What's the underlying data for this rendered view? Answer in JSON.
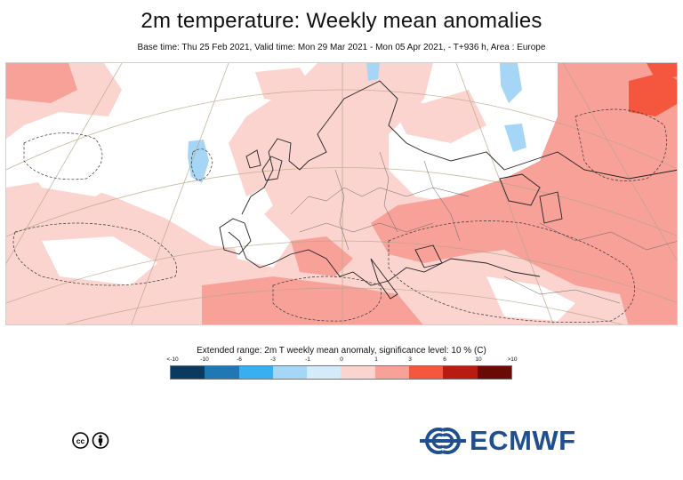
{
  "header": {
    "title": "2m temperature: Weekly mean anomalies",
    "subtitle": "Base time: Thu 25 Feb 2021, Valid time: Mon 29 Mar 2021 - Mon 05 Apr 2021, - T+936 h, Area : Europe"
  },
  "legend": {
    "title": "Extended range: 2m T weekly mean anomaly, significance level: 10 % (C)",
    "ticks": [
      "<-10",
      "-10",
      "-6",
      "-3",
      "-1",
      "0",
      "1",
      "3",
      "6",
      "10",
      ">10"
    ],
    "colors": [
      "#0b3a5e",
      "#1f78b4",
      "#39aef0",
      "#a6d6f5",
      "#d4ecfa",
      "#fcd4cf",
      "#f7a199",
      "#f4563e",
      "#b81c10",
      "#6a0a07"
    ]
  },
  "map": {
    "ocean_color": "#ffffff",
    "warm_light": "#fcd4cf",
    "warm_mid": "#f7a199",
    "warm_strong": "#f4563e",
    "cool_light": "#a6d6f5"
  },
  "footer": {
    "license_icon": "creative-commons-by-icon",
    "logo_text": "ECMWF",
    "logo_color": "#1f4f8e"
  }
}
